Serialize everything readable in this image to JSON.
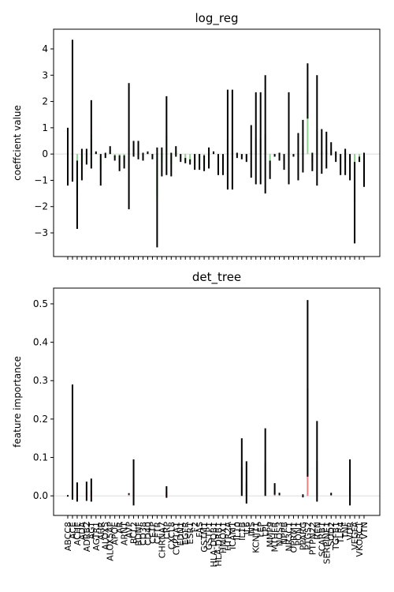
{
  "chart_data": [
    {
      "type": "bar",
      "title": "log_reg",
      "ylabel": "coeffcient value",
      "color": "#8fd18f",
      "error_color": "#000000",
      "ylim": [
        -3.9,
        4.75
      ],
      "yticks": [
        {
          "value": -3,
          "label": "−3"
        },
        {
          "value": -2,
          "label": "−2"
        },
        {
          "value": -1,
          "label": "−1"
        },
        0,
        1,
        2,
        3,
        4
      ],
      "values": [
        -0.1,
        1.65,
        -1.55,
        -0.4,
        -0.1,
        0.75,
        0.05,
        -0.6,
        -0.05,
        0.15,
        -0.15,
        -0.35,
        -0.3,
        0.3,
        0.2,
        0.15,
        -0.1,
        0.05,
        -0.1,
        -1.65,
        -0.3,
        0.7,
        -0.4,
        0.1,
        -0.15,
        -0.25,
        -0.3,
        -0.3,
        -0.3,
        -0.35,
        -0.15,
        0.05,
        -0.4,
        -0.4,
        0.55,
        0.55,
        -0.05,
        -0.1,
        -0.15,
        0.1,
        0.6,
        0.6,
        0.75,
        -0.6,
        -0.05,
        -0.1,
        -0.3,
        0.6,
        -0.05,
        -0.1,
        0.3,
        2.4,
        -0.3,
        0.9,
        0.1,
        0.15,
        0.2,
        -0.1,
        -0.4,
        -0.3,
        -0.5,
        -1.85,
        -0.2,
        -0.6
      ],
      "errors": [
        1.1,
        2.7,
        1.3,
        0.6,
        0.3,
        1.3,
        0.05,
        0.6,
        0.1,
        0.15,
        0.1,
        0.3,
        0.25,
        2.4,
        0.3,
        0.35,
        0.15,
        0.05,
        0.1,
        1.9,
        0.55,
        1.5,
        0.45,
        0.2,
        0.15,
        0.1,
        0.1,
        0.3,
        0.3,
        0.3,
        0.4,
        0.05,
        0.4,
        0.4,
        1.9,
        1.9,
        0.1,
        0.1,
        0.15,
        1.0,
        1.75,
        1.75,
        2.25,
        0.35,
        0.05,
        0.15,
        0.3,
        1.75,
        0.05,
        0.9,
        1.0,
        1.05,
        0.35,
        2.1,
        0.85,
        0.7,
        0.25,
        0.2,
        0.4,
        0.5,
        0.5,
        1.55,
        0.1,
        0.65
      ]
    },
    {
      "type": "bar",
      "title": "det_tree",
      "ylabel": "feature importance",
      "color": "#f08080",
      "error_color": "#000000",
      "ylim": [
        -0.051,
        0.541
      ],
      "yticks": [
        {
          "value": 0,
          "label": "0.0"
        },
        0.1,
        0.2,
        0.3,
        0.4,
        0.5
      ],
      "categories": [
        "ABCC8",
        "ACE",
        "ACHE",
        "ADA",
        "ADRB2",
        "AGT",
        "AGTR1",
        "AHR",
        "ALOX5",
        "ALOX5AP",
        "APOE",
        "AR",
        "ARNT",
        "AVP",
        "BCL2",
        "BDNF",
        "CD38",
        "CD40",
        "CETP",
        "CFTR",
        "CHRNA7",
        "CRP",
        "CXCL8",
        "CYP1A1",
        "EDN1",
        "EGFR",
        "ESR1",
        "F2",
        "FAS",
        "GSTM1",
        "GSTP1",
        "HLA-DQB1",
        "HLA-DRB1",
        "HMOX1",
        "HTR2A",
        "ICAM1",
        "IL10",
        "IL1B",
        "IL6",
        "INS",
        "KCNJ11",
        "LEP",
        "LPL",
        "MMP9",
        "MTHFR",
        "NOS3",
        "NPPB",
        "NR3C1",
        "OPRM1",
        "PON1",
        "PPARG",
        "PTGS2",
        "PTPN22",
        "REN",
        "SCARB1",
        "SERPINE1",
        "SOD2",
        "TGFB1",
        "TLR4",
        "TNF",
        "VDR",
        "VEGFA",
        "VKORC1",
        "VTN"
      ],
      "values": [
        0,
        0.14,
        0.01,
        0,
        0.012,
        0.015,
        0,
        0,
        0,
        0,
        0,
        0,
        0,
        0.005,
        0.035,
        0,
        0,
        0,
        0,
        0,
        0,
        0.01,
        0,
        0,
        0,
        0,
        0,
        0,
        0,
        0,
        0,
        0,
        0,
        0,
        0,
        0,
        0,
        0.075,
        0.035,
        0,
        0,
        0,
        0.088,
        0,
        0.018,
        0.005,
        0,
        0,
        0,
        0,
        0,
        0.28,
        0,
        0.09,
        0,
        0,
        0.005,
        0,
        0,
        0,
        0.035,
        0,
        0,
        0
      ],
      "errors": [
        0.002,
        0.15,
        0.025,
        0,
        0.025,
        0.03,
        0,
        0,
        0,
        0,
        0,
        0,
        0,
        0.002,
        0.06,
        0,
        0,
        0,
        0,
        0,
        0,
        0.015,
        0,
        0,
        0,
        0,
        0,
        0,
        0,
        0,
        0,
        0,
        0,
        0,
        0,
        0,
        0,
        0.075,
        0.055,
        0,
        0,
        0,
        0.088,
        0,
        0.015,
        0.003,
        0,
        0,
        0,
        0,
        0.004,
        0.23,
        0,
        0.105,
        0,
        0,
        0.003,
        0,
        0,
        0,
        0.06,
        0,
        0,
        0
      ]
    }
  ]
}
